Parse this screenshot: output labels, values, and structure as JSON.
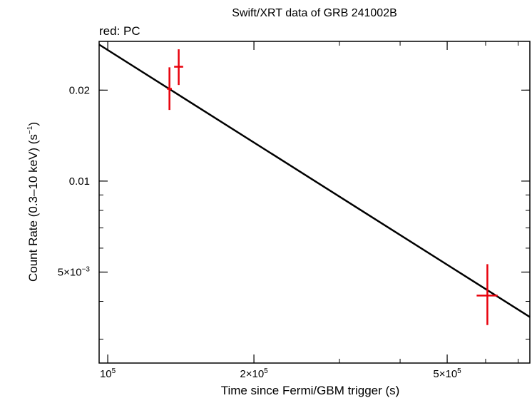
{
  "chart_data": {
    "type": "scatter",
    "title": "Swift/XRT data of GRB 241002B",
    "subtitle": "red: PC",
    "xlabel": "Time since Fermi/GBM trigger (s)",
    "ylabel": {
      "main": "Count Rate (0.3–10 keV) (s",
      "exp": "−1",
      "close": ")"
    },
    "x_scale": "log",
    "y_scale": "log",
    "xlim": [
      96000,
      740000
    ],
    "ylim": [
      0.0025,
      0.029
    ],
    "grid": false,
    "x_ticks": [
      {
        "value": 100000,
        "mantissa": "10",
        "exp": "5"
      },
      {
        "value": 200000,
        "mantissa": "2×10",
        "exp": "5"
      },
      {
        "value": 500000,
        "mantissa": "5×10",
        "exp": "5"
      }
    ],
    "y_ticks": [
      {
        "value": 0.02,
        "mantissa": "0.02",
        "exp": ""
      },
      {
        "value": 0.01,
        "mantissa": "0.01",
        "exp": ""
      },
      {
        "value": 0.005,
        "mantissa": "5×10",
        "exp": "−3"
      }
    ],
    "series": [
      {
        "color": "#e8000b",
        "points": [
          {
            "x": 134000,
            "y": 0.0202,
            "xerr": [
              132500,
              135500
            ],
            "yerr": [
              0.0172,
              0.0238
            ]
          },
          {
            "x": 140000,
            "y": 0.0239,
            "xerr": [
              137000,
              143000
            ],
            "yerr": [
              0.0208,
              0.0273
            ]
          },
          {
            "x": 605000,
            "y": 0.00418,
            "xerr": [
              575000,
              635000
            ],
            "yerr": [
              0.00334,
              0.00531
            ]
          }
        ]
      }
    ],
    "model": {
      "color": "#000000",
      "line": [
        {
          "x": 96000,
          "y": 0.0283
        },
        {
          "x": 740000,
          "y": 0.00355
        }
      ]
    }
  }
}
